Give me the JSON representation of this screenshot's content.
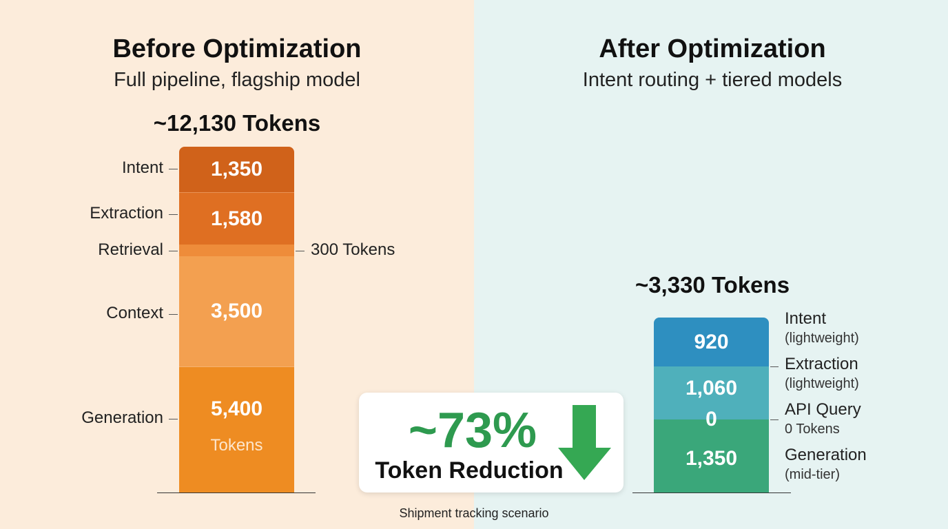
{
  "before": {
    "title": "Before Optimization",
    "subtitle": "Full pipeline, flagship model",
    "total": "~12,130 Tokens",
    "segments": [
      {
        "label": "Intent",
        "value": "1,350"
      },
      {
        "label": "Extraction",
        "value": "1,580"
      },
      {
        "label": "Retrieval",
        "note": "300 Tokens"
      },
      {
        "label": "Context",
        "value": "3,500"
      },
      {
        "label": "Generation",
        "value": "5,400",
        "unit": "Tokens"
      }
    ]
  },
  "after": {
    "title": "After Optimization",
    "subtitle": "Intent routing + tiered models",
    "total": "~3,330 Tokens",
    "segments": [
      {
        "label": "Intent",
        "value": "920",
        "note": "(lightweight)"
      },
      {
        "label": "Extraction",
        "value": "1,060",
        "note": "(lightweight)"
      },
      {
        "label": "API Query",
        "value": "0",
        "note": "0 Tokens"
      },
      {
        "label": "Generation",
        "value": "1,350",
        "note": "(mid-tier)"
      }
    ]
  },
  "reduction": {
    "percent": "~73%",
    "label": "Token Reduction"
  },
  "footer": "Shipment tracking scenario"
}
